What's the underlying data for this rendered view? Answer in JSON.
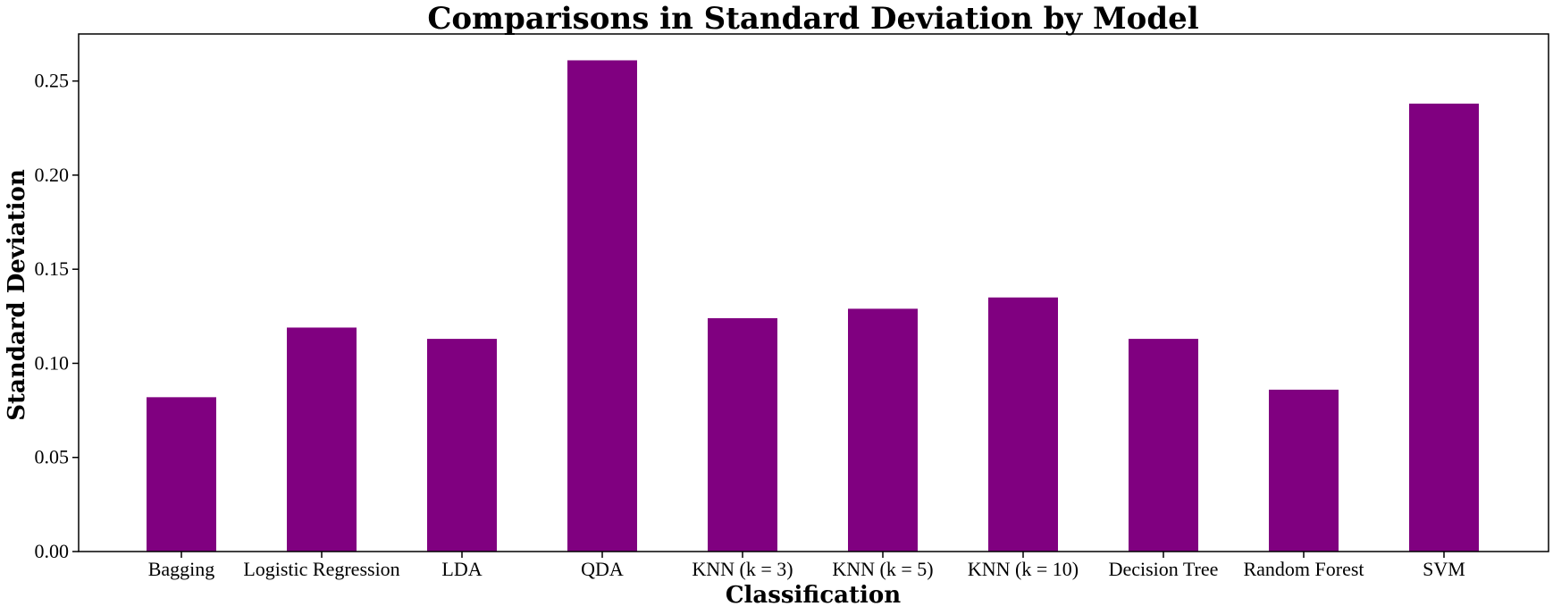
{
  "chart_data": {
    "type": "bar",
    "title": "Comparisons in Standard Deviation by Model",
    "xlabel": "Classification",
    "ylabel": "Standard Deviation",
    "categories": [
      "Bagging",
      "Logistic Regression",
      "LDA",
      "QDA",
      "KNN (k = 3)",
      "KNN (k = 5)",
      "KNN (k = 10)",
      "Decision Tree",
      "Random Forest",
      "SVM"
    ],
    "values": [
      0.082,
      0.119,
      0.113,
      0.261,
      0.124,
      0.129,
      0.135,
      0.113,
      0.086,
      0.238
    ],
    "ylim": [
      0,
      0.275
    ],
    "yticks": [
      "0.00",
      "0.05",
      "0.10",
      "0.15",
      "0.20",
      "0.25"
    ],
    "grid": false,
    "bar_color": "#800080"
  }
}
